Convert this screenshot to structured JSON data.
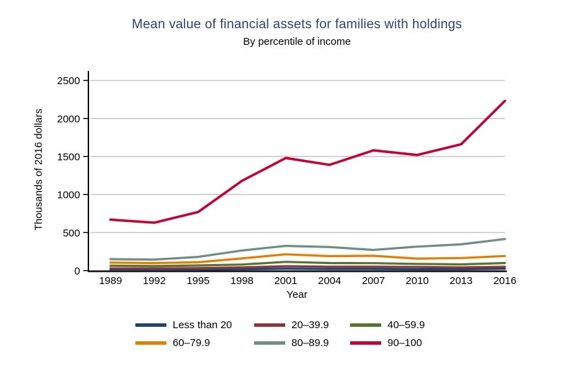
{
  "chart_data": {
    "type": "line",
    "title": "Mean value of financial assets for families with holdings",
    "subtitle": "By percentile of income",
    "xlabel": "Year",
    "ylabel": "Thousands of 2016 dollars",
    "x": [
      1989,
      1992,
      1995,
      1998,
      2001,
      2004,
      2007,
      2010,
      2013,
      2016
    ],
    "ylim": [
      0,
      2500
    ],
    "yticks": [
      0,
      500,
      1000,
      1500,
      2000,
      2500
    ],
    "grid": true,
    "legend_position": "bottom",
    "legend_rows": 2,
    "legend_columns": 3,
    "series": [
      {
        "name": "Less than 20",
        "color": "#1a476f",
        "values": [
          10,
          10,
          12,
          18,
          25,
          22,
          22,
          18,
          18,
          25
        ]
      },
      {
        "name": "20–39.9",
        "color": "#90353b",
        "values": [
          30,
          28,
          33,
          42,
          58,
          52,
          52,
          48,
          42,
          50
        ]
      },
      {
        "name": "40–59.9",
        "color": "#55752f",
        "values": [
          65,
          60,
          68,
          80,
          115,
          100,
          98,
          88,
          82,
          100
        ]
      },
      {
        "name": "60–79.9",
        "color": "#e37e00",
        "values": [
          105,
          100,
          110,
          160,
          215,
          190,
          195,
          158,
          165,
          192
        ]
      },
      {
        "name": "80–89.9",
        "color": "#6e8e84",
        "values": [
          150,
          145,
          180,
          265,
          325,
          310,
          272,
          315,
          345,
          415
        ]
      },
      {
        "name": "90–100",
        "color": "#c10534",
        "values": [
          670,
          630,
          770,
          1180,
          1480,
          1390,
          1580,
          1520,
          1660,
          2230
        ]
      }
    ]
  },
  "colors": {
    "title": "#2a4373",
    "axis": "#000000",
    "gridline": "#c6c6c6",
    "text": "#000000",
    "background": "#ffffff"
  }
}
